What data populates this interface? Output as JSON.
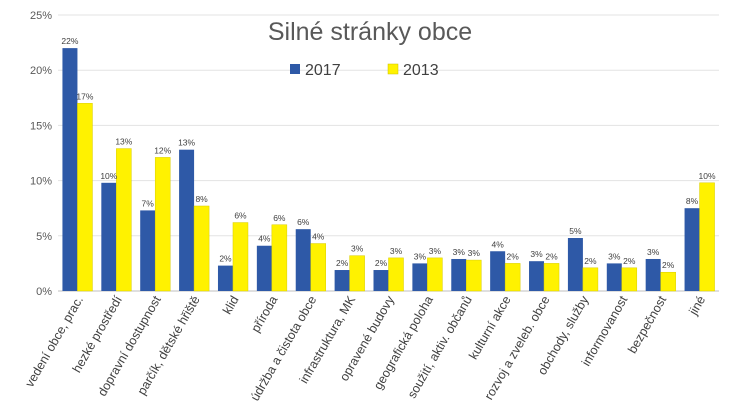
{
  "chart_data": {
    "type": "bar",
    "title": "Silné stránky obce",
    "xlabel": "",
    "ylabel": "",
    "ylim": [
      0,
      25
    ],
    "yticks": [
      "0%",
      "5%",
      "10%",
      "15%",
      "20%",
      "25%"
    ],
    "grid": true,
    "legend_position": "top",
    "categories": [
      "vedení obce, prac.",
      "hezké prostředí",
      "dopravní dostupnost",
      "parčík, dětské hřiště",
      "klid",
      "příroda",
      "údržba a čistota obce",
      "infrastruktura, MK",
      "opravené budovy",
      "geografická poloha",
      "soužití, aktiv. občanů",
      "kulturní akce",
      "rozvoj a zveleb. obce",
      "obchody, služby",
      "informovanost",
      "bezpečnost",
      "jiné"
    ],
    "series": [
      {
        "name": "2017",
        "color": "#2E59A7",
        "values": [
          22,
          9.8,
          7.3,
          12.8,
          2.3,
          4.1,
          5.6,
          1.9,
          1.9,
          2.5,
          2.9,
          3.6,
          2.7,
          4.8,
          2.5,
          2.9,
          7.5
        ],
        "labels": [
          "22%",
          "10%",
          "7%",
          "13%",
          "2%",
          "4%",
          "6%",
          "2%",
          "2%",
          "3%",
          "3%",
          "4%",
          "3%",
          "5%",
          "3%",
          "3%",
          "8%"
        ]
      },
      {
        "name": "2013",
        "color": "#FFF200",
        "values": [
          17,
          12.9,
          12.1,
          7.7,
          6.2,
          6.0,
          4.3,
          3.2,
          3.0,
          3.0,
          2.8,
          2.5,
          2.5,
          2.1,
          2.1,
          1.7,
          9.8
        ],
        "labels": [
          "17%",
          "13%",
          "12%",
          "8%",
          "6%",
          "6%",
          "4%",
          "3%",
          "3%",
          "3%",
          "3%",
          "2%",
          "2%",
          "2%",
          "2%",
          "2%",
          "10%"
        ]
      }
    ]
  }
}
